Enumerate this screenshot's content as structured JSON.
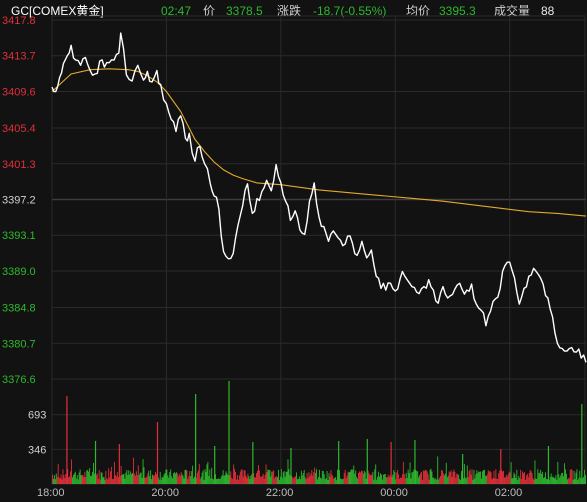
{
  "header": {
    "symbol": "GC[COMEX黄金]",
    "time": "02:47",
    "price_label": "价",
    "price": "3378.5",
    "change_label": "涨跌",
    "change": "-18.7(-0.55%)",
    "avg_label": "均价",
    "avg": "3395.3",
    "volume_label": "成交量",
    "volume": "88"
  },
  "colors": {
    "up": "#e0303a",
    "down": "#2eb82e",
    "neutral": "#d0d0d0",
    "price_line": "#ffffff",
    "avg_line": "#e3a92a",
    "grid": "#2a2a2a"
  },
  "chart_data": {
    "type": "line",
    "prev_close": 3397.2,
    "price_axis": {
      "ticks": [
        "3417.8",
        "3413.7",
        "3409.6",
        "3405.4",
        "3401.3",
        "3397.2",
        "3393.1",
        "3389.0",
        "3384.8",
        "3380.7",
        "3376.6"
      ],
      "ylim": [
        3376.6,
        3417.8
      ]
    },
    "volume_axis": {
      "ticks": [
        "693",
        "346"
      ],
      "ylim": [
        0,
        1040
      ]
    },
    "x_ticks": [
      "18:00",
      "20:00",
      "22:00",
      "00:00",
      "02:00"
    ],
    "x_range_minutes": [
      0,
      560
    ],
    "series": [
      {
        "role": "price",
        "x": [
          0,
          4,
          8,
          12,
          16,
          20,
          25,
          30,
          35,
          40,
          45,
          50,
          55,
          60,
          65,
          70,
          72,
          78,
          84,
          90,
          96,
          100,
          105,
          110,
          114,
          120,
          125,
          130,
          135,
          140,
          144,
          150,
          155,
          160,
          166,
          170,
          175,
          180,
          185,
          190,
          195,
          200,
          205,
          210,
          215,
          220,
          225,
          230,
          235,
          240,
          245,
          250,
          255,
          260,
          265,
          270,
          275,
          280,
          285,
          290,
          295,
          300,
          305,
          310,
          315,
          320,
          325,
          330,
          335,
          340,
          345,
          350,
          355,
          360,
          365,
          370,
          375,
          380,
          385,
          390,
          395,
          400,
          405,
          410,
          415,
          420,
          425,
          430,
          435,
          440,
          445,
          450,
          455,
          460,
          465,
          470,
          475,
          480,
          485,
          490,
          495,
          500,
          505,
          510,
          515,
          520,
          525,
          530,
          535,
          540,
          545,
          550,
          555,
          560
        ],
        "y": [
          3410.1,
          3409.6,
          3411.2,
          3412.8,
          3413.7,
          3414.9,
          3413.2,
          3412.6,
          3413.5,
          3412.0,
          3411.6,
          3413.1,
          3412.4,
          3412.9,
          3413.2,
          3414.0,
          3416.3,
          3411.5,
          3410.8,
          3412.6,
          3410.9,
          3411.9,
          3410.7,
          3412.0,
          3410.4,
          3408.2,
          3406.4,
          3405.0,
          3406.8,
          3404.2,
          3404.8,
          3401.6,
          3403.3,
          3401.3,
          3399.0,
          3397.6,
          3396.1,
          3391.2,
          3390.4,
          3391.0,
          3394.2,
          3396.5,
          3399.0,
          3395.6,
          3397.3,
          3398.1,
          3399.4,
          3398.2,
          3401.2,
          3399.1,
          3397.0,
          3394.8,
          3395.9,
          3393.7,
          3393.2,
          3397.0,
          3399.1,
          3395.2,
          3394.1,
          3392.4,
          3393.6,
          3392.8,
          3391.9,
          3393.0,
          3392.2,
          3390.8,
          3392.4,
          3390.5,
          3391.4,
          3388.4,
          3387.0,
          3386.8,
          3387.6,
          3386.7,
          3388.1,
          3388.4,
          3387.6,
          3387.1,
          3386.4,
          3387.2,
          3388.0,
          3386.8,
          3385.3,
          3387.2,
          3385.9,
          3386.3,
          3387.4,
          3386.9,
          3386.8,
          3387.5,
          3385.2,
          3384.5,
          3382.7,
          3384.4,
          3385.8,
          3387.0,
          3389.6,
          3390.0,
          3388.2,
          3385.2,
          3387.0,
          3388.4,
          3389.3,
          3388.6,
          3387.5,
          3385.9,
          3383.7,
          3380.7,
          3380.1,
          3379.8,
          3380.2,
          3379.7,
          3379.0,
          3378.5
        ]
      },
      {
        "role": "average",
        "x": [
          0,
          20,
          40,
          60,
          80,
          90,
          100,
          110,
          120,
          135,
          150,
          160,
          170,
          180,
          190,
          200,
          215,
          240,
          260,
          280,
          300,
          320,
          350,
          380,
          410,
          440,
          470,
          500,
          530,
          540,
          550,
          560
        ],
        "y": [
          3409.6,
          3411.6,
          3412.1,
          3412.2,
          3412.1,
          3411.9,
          3411.4,
          3410.7,
          3409.6,
          3407.3,
          3404.1,
          3402.7,
          3401.5,
          3400.6,
          3400.0,
          3399.6,
          3399.1,
          3398.9,
          3398.6,
          3398.3,
          3398.1,
          3397.9,
          3397.6,
          3397.3,
          3397.0,
          3396.6,
          3396.2,
          3395.8,
          3395.6,
          3395.5,
          3395.4,
          3395.3
        ]
      },
      {
        "role": "volume",
        "x": [
          15,
          45,
          70,
          110,
          150,
          170,
          185,
          210,
          250,
          300,
          330,
          355,
          380,
          430,
          470,
          520,
          555
        ],
        "y": [
          880,
          430,
          400,
          620,
          900,
          380,
          1030,
          420,
          360,
          430,
          450,
          420,
          440,
          300,
          350,
          380,
          800
        ]
      }
    ]
  }
}
